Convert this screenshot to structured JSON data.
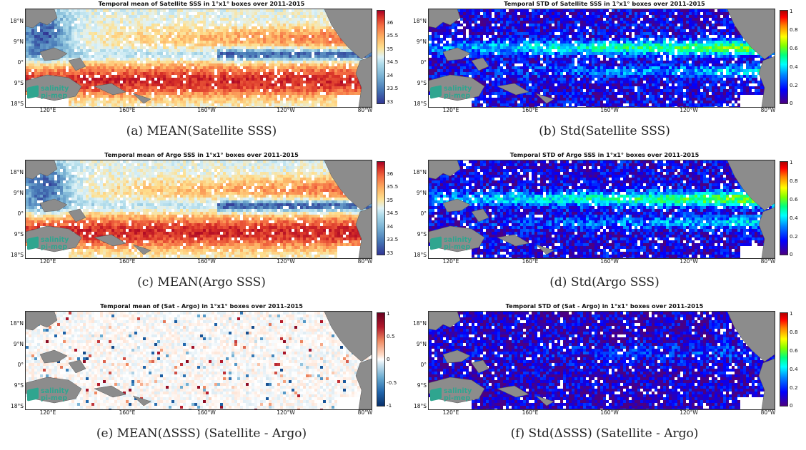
{
  "figure": {
    "panels": [
      {
        "id": "a",
        "title": "Temporal mean of Satellite SSS in 1°x1° boxes over 2011-2015",
        "caption": "(a) MEAN(Satellite SSS)",
        "colormap": "rdylbu_r",
        "field": "mean",
        "colorbar_ticks": [
          "36",
          "35.5",
          "35",
          "34.5",
          "34",
          "33.5",
          "33"
        ],
        "range": [
          33,
          36.5
        ]
      },
      {
        "id": "b",
        "title": "Temporal STD of Satellite SSS in 1°x1° boxes over 2011-2015",
        "caption": "(b) Std(Satellite SSS)",
        "colormap": "jet",
        "field": "std",
        "colorbar_ticks": [
          "1",
          "0.8",
          "0.6",
          "0.4",
          "0.2",
          "0"
        ],
        "range": [
          0,
          1
        ]
      },
      {
        "id": "c",
        "title": "Temporal mean of Argo SSS in 1°x1° boxes over 2011-2015",
        "caption": "(c) MEAN(Argo SSS)",
        "colormap": "rdylbu_r",
        "field": "mean",
        "colorbar_ticks": [
          "36",
          "35.5",
          "35",
          "34.5",
          "34",
          "33.5",
          "33"
        ],
        "range": [
          33,
          36.5
        ]
      },
      {
        "id": "d",
        "title": "Temporal STD of Argo SSS in 1°x1° boxes over 2011-2015",
        "caption": "(d) Std(Argo SSS)",
        "colormap": "jet",
        "field": "std",
        "colorbar_ticks": [
          "1",
          "0.8",
          "0.6",
          "0.4",
          "0.2",
          "0"
        ],
        "range": [
          0,
          1
        ]
      },
      {
        "id": "e",
        "title": "Temporal mean of (Sat - Argo) in 1°x1° boxes over 2011-2015",
        "caption": "(e) MEAN(ΔSSS) (Satellite - Argo)",
        "colormap": "bwr",
        "field": "diff",
        "colorbar_ticks": [
          "1",
          "0.5",
          "0",
          "-0.5",
          "-1"
        ],
        "range": [
          -1,
          1
        ]
      },
      {
        "id": "f",
        "title": "Temporal STD of (Sat - Argo) in 1°x1° boxes over 2011-2015",
        "caption": "(f) Std(ΔSSS) (Satellite - Argo)",
        "colormap": "jet",
        "field": "stdlow",
        "colorbar_ticks": [
          "1",
          "0.8",
          "0.6",
          "0.4",
          "0.2",
          "0"
        ],
        "range": [
          0,
          1
        ]
      }
    ],
    "lat_ticks": [
      "18°N",
      "9°N",
      "0°",
      "9°S",
      "18°S"
    ],
    "lon_ticks": [
      "120°E",
      "160°E",
      "160°W",
      "120°W",
      "80°W"
    ],
    "logo": {
      "line1": "salinity",
      "line2": "pi-mep"
    },
    "colors": {
      "land": "#8c8c8c",
      "background": "#ffffff",
      "logo": "#2fa58f"
    }
  }
}
